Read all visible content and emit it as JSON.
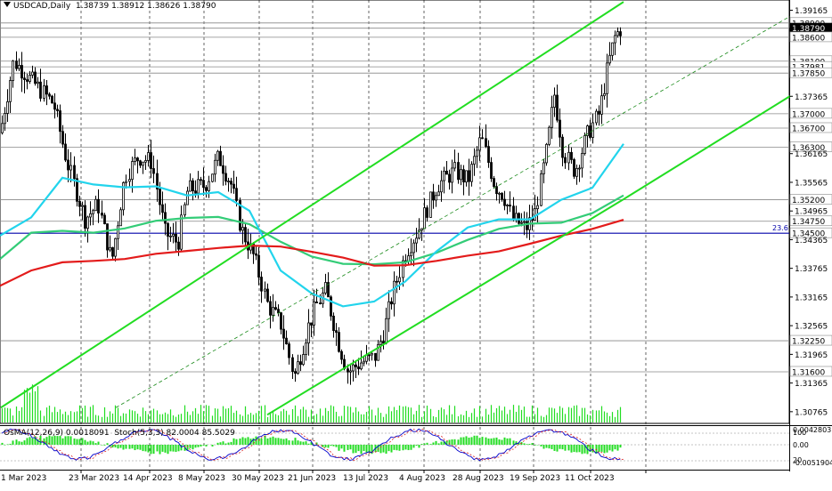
{
  "header": {
    "symbol": "USDCAD,Daily",
    "ohlc": "1.38739 1.38912 1.38626 1.38790"
  },
  "oscillator_header": {
    "osma": "OsMA(12,26,9) 0.0018091",
    "stoch": "Stoch(5,3,3) 82.0004 85.5029"
  },
  "colors": {
    "candle": "#000000",
    "ema_red": "#e31b1b",
    "ema_cyan": "#22d4ec",
    "ema_green": "#33cc77",
    "channel": "#22dd22",
    "hline_blue": "#0000aa",
    "hline_gray": "#888888",
    "osma_hist": "#22dd22",
    "stoch_main": "#0000cc",
    "stoch_signal": "#dd2222"
  },
  "chart_data": {
    "type": "candlestick",
    "symbol": "USDCAD",
    "timeframe": "Daily",
    "ylim": [
      1.3052,
      1.3938
    ],
    "price_ticks": [
      "1.39165",
      "1.38900",
      "1.38790",
      "1.38600",
      "1.38100",
      "1.37981",
      "1.37850",
      "1.37365",
      "1.37000",
      "1.36700",
      "1.36300",
      "1.36165",
      "1.35565",
      "1.35200",
      "1.34965",
      "1.34750",
      "1.34500",
      "1.34365",
      "1.33765",
      "1.33165",
      "1.32565",
      "1.32250",
      "1.31965",
      "1.31600",
      "1.31365",
      "1.30765"
    ],
    "date_labels": [
      "1 Mar 2023",
      "23 Mar 2023",
      "14 Apr 2023",
      "8 May 2023",
      "30 May 2023",
      "21 Jun 2023",
      "13 Jul 2023",
      "4 Aug 2023",
      "28 Aug 2023",
      "19 Sep 2023",
      "11 Oct 2023"
    ],
    "levels": [
      {
        "label": "1.38900",
        "value": 1.389
      },
      {
        "label": "1.38790",
        "value": 1.3879,
        "current": true
      },
      {
        "label": "1.38600",
        "value": 1.386
      },
      {
        "label": "1.38100",
        "value": 1.381
      },
      {
        "label": "1.37981",
        "value": 1.37981
      },
      {
        "label": "1.37850",
        "value": 1.3785
      },
      {
        "label": "1.37000",
        "value": 1.37
      },
      {
        "label": "1.36700",
        "value": 1.367
      },
      {
        "label": "1.36300",
        "value": 1.363
      },
      {
        "label": "1.35200",
        "value": 1.352
      },
      {
        "label": "1.34750",
        "value": 1.3475
      },
      {
        "label": "1.34500",
        "value": 1.345,
        "fib": "23.6"
      },
      {
        "label": "1.32250",
        "value": 1.3225
      },
      {
        "label": "1.31600",
        "value": 1.316
      }
    ],
    "fib_label": "23.6",
    "ema_red": [
      1.334,
      1.3372,
      1.3389,
      1.3392,
      1.3396,
      1.3407,
      1.3413,
      1.3419,
      1.3424,
      1.3422,
      1.3411,
      1.3399,
      1.3382,
      1.3383,
      1.3392,
      1.3403,
      1.3412,
      1.3428,
      1.3445,
      1.3459,
      1.3478
    ],
    "ema_cyan": [
      1.3445,
      1.3483,
      1.3566,
      1.3552,
      1.3546,
      1.3548,
      1.3529,
      1.3536,
      1.3497,
      1.3372,
      1.3324,
      1.3297,
      1.3307,
      1.3349,
      1.3412,
      1.3462,
      1.3479,
      1.3479,
      1.352,
      1.3545,
      1.3637
    ],
    "ema_green": [
      1.3396,
      1.3451,
      1.3455,
      1.3451,
      1.346,
      1.3476,
      1.3482,
      1.3484,
      1.3469,
      1.3432,
      1.3401,
      1.3386,
      1.3385,
      1.3389,
      1.3409,
      1.3436,
      1.3459,
      1.347,
      1.3472,
      1.3492,
      1.3529
    ],
    "channel": {
      "upper": [
        [
          1,
          1.3085
        ],
        [
          700,
          1.3934
        ]
      ],
      "lower": [
        [
          300,
          1.307
        ],
        [
          700,
          1.3521
        ]
      ],
      "lower_extension": [
        [
          700,
          1.3521
        ],
        [
          887,
          1.3737
        ]
      ],
      "mid_dashed": [
        [
          130,
          1.3085
        ],
        [
          887,
          1.3904
        ]
      ]
    },
    "candles_ohlc_approx": "daily candles from 1 Mar 2023 to late Oct 2023, low ~1.3093 (mid-Jul), high ~1.3891 (last)",
    "oscillator": {
      "osma_value": 0.0018091,
      "stoch_main": 82.0004,
      "stoch_signal": 85.5029,
      "scale_labels": [
        "0.0042803",
        "100",
        "0.00",
        "20",
        "-0.0051904"
      ]
    }
  }
}
